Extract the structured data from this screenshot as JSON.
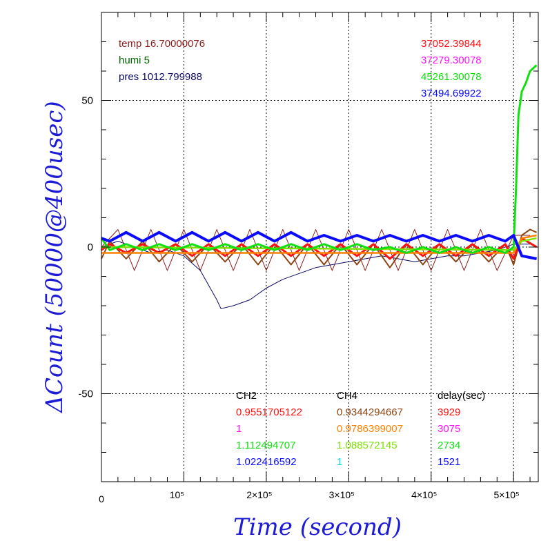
{
  "chart_data": {
    "type": "line",
    "xlabel": "Time (second)",
    "ylabel": "ΔCount (50000@400usec)",
    "xlim": [
      0,
      530000
    ],
    "ylim": [
      -80,
      80
    ],
    "x_ticks": [
      {
        "value": 0,
        "label": "0"
      },
      {
        "value": 100000,
        "label": "10⁵"
      },
      {
        "value": 200000,
        "label": "2×10⁵"
      },
      {
        "value": 300000,
        "label": "3×10⁵"
      },
      {
        "value": 400000,
        "label": "4×10⁵"
      },
      {
        "value": 500000,
        "label": "5×10⁵"
      }
    ],
    "y_ticks": [
      {
        "value": 50,
        "label": "50"
      },
      {
        "value": 0,
        "label": "0"
      },
      {
        "value": -50,
        "label": "-50"
      }
    ],
    "grid": true,
    "colors": {
      "brown": "#8b1a1a",
      "dark_orange": "#8b4513",
      "orange": "#ff8000",
      "red": "#ff1010",
      "green": "#10e010",
      "dark_green": "#006400",
      "blue": "#0a0aff",
      "navy": "#0a0a6a",
      "magenta": "#ff10ff",
      "cyan": "#00e0e0",
      "yellow_green": "#80e000"
    },
    "series": [
      {
        "color": "brown",
        "x": [
          0,
          20000,
          40000,
          60000,
          80000,
          100000,
          120000,
          140000,
          160000,
          180000,
          200000,
          220000,
          240000,
          260000,
          280000,
          300000,
          320000,
          340000,
          360000,
          380000,
          400000,
          420000,
          440000,
          460000,
          480000,
          500000,
          520000
        ],
        "y": [
          0,
          6,
          -8,
          6,
          -8,
          6,
          -8,
          6,
          -8,
          6,
          -8,
          6,
          -8,
          6,
          -8,
          6,
          -8,
          6,
          -8,
          6,
          -8,
          6,
          -8,
          6,
          -8,
          4,
          4
        ]
      },
      {
        "color": "navy",
        "x": [
          0,
          20000,
          40000,
          60000,
          80000,
          100000,
          120000,
          140000,
          145000,
          160000,
          180000,
          200000,
          220000,
          240000,
          260000,
          280000,
          300000,
          320000,
          340000,
          360000,
          380000,
          400000,
          420000,
          440000,
          460000,
          480000,
          500000,
          520000
        ],
        "y": [
          0,
          2,
          0,
          -2,
          -1,
          -3,
          -8,
          -18,
          -21,
          -20,
          -18,
          -14,
          -11,
          -9,
          -7,
          -6,
          -5,
          -4,
          -3,
          -4,
          -5,
          -4,
          -3,
          -3,
          -2,
          -1,
          1,
          1
        ]
      },
      {
        "color": "dark_orange",
        "x": [
          0,
          10000,
          30000,
          50000,
          70000,
          90000,
          110000,
          130000,
          150000,
          170000,
          190000,
          210000,
          230000,
          250000,
          270000,
          290000,
          310000,
          330000,
          350000,
          370000,
          390000,
          410000,
          430000,
          450000,
          470000,
          490000,
          500000,
          510000,
          520000,
          528000
        ],
        "y": [
          -4,
          2,
          -4,
          2,
          -5,
          1,
          -5,
          1,
          -5,
          1,
          -6,
          1,
          -6,
          1,
          -6,
          1,
          -6,
          1,
          -7,
          1,
          -6,
          1,
          -5,
          1,
          -5,
          1,
          -6,
          4,
          6,
          5
        ]
      },
      {
        "color": "red",
        "x": [
          0,
          10000,
          30000,
          50000,
          70000,
          90000,
          110000,
          130000,
          150000,
          170000,
          190000,
          210000,
          230000,
          250000,
          270000,
          290000,
          310000,
          330000,
          350000,
          370000,
          390000,
          410000,
          430000,
          450000,
          470000,
          490000,
          500000,
          510000,
          528000
        ],
        "y": [
          -1,
          1,
          -2,
          1,
          -2,
          1,
          -3,
          1,
          -3,
          1,
          -3,
          1,
          -3,
          1,
          -3,
          1,
          -3,
          1,
          -4,
          1,
          -3,
          1,
          -3,
          1,
          -3,
          1,
          -4,
          3,
          0
        ]
      },
      {
        "color": "orange",
        "x": [
          0,
          500000,
          510000,
          528000
        ],
        "y": [
          -2,
          -2,
          3,
          4
        ]
      },
      {
        "color": "yellow_green",
        "x": [
          0,
          500000,
          510000,
          528000
        ],
        "y": [
          0,
          -1,
          2,
          3
        ]
      },
      {
        "color": "green",
        "x": [
          0,
          10000,
          30000,
          50000,
          70000,
          90000,
          110000,
          130000,
          150000,
          170000,
          190000,
          210000,
          230000,
          250000,
          270000,
          290000,
          310000,
          330000,
          350000,
          370000,
          390000,
          410000,
          430000,
          450000,
          470000,
          490000,
          500000,
          503000,
          506000,
          510000,
          515000,
          520000,
          528000
        ],
        "y": [
          3,
          -1,
          1,
          -1,
          1,
          -1,
          1,
          -1,
          1,
          -1,
          1,
          -1,
          1,
          -1,
          1,
          -1,
          1,
          -1,
          0,
          -2,
          0,
          -2,
          0,
          -2,
          0,
          -2,
          0,
          20,
          45,
          53,
          56,
          60,
          62
        ]
      },
      {
        "color": "blue",
        "x": [
          0,
          10000,
          30000,
          50000,
          70000,
          90000,
          110000,
          130000,
          150000,
          170000,
          190000,
          210000,
          230000,
          250000,
          270000,
          290000,
          310000,
          330000,
          350000,
          370000,
          390000,
          410000,
          430000,
          450000,
          470000,
          490000,
          500000,
          510000,
          528000
        ],
        "y": [
          3,
          2,
          5,
          2,
          5,
          2,
          5,
          2,
          5,
          2,
          5,
          2,
          5,
          2,
          4,
          2,
          4,
          2,
          4,
          2,
          4,
          2,
          4,
          2,
          4,
          2,
          4,
          -3,
          -4
        ]
      }
    ],
    "annotations_top_left": [
      {
        "text": "temp 16.70000076",
        "color": "brown"
      },
      {
        "text": "humi 5",
        "color": "dark_green"
      },
      {
        "text": "pres 1012.799988",
        "color": "navy"
      }
    ],
    "annotations_top_right": [
      {
        "text": "37052.39844",
        "color": "red"
      },
      {
        "text": "37279.30078",
        "color": "magenta"
      },
      {
        "text": "45261.30078",
        "color": "green"
      },
      {
        "text": "37494.69922",
        "color": "blue"
      }
    ],
    "table_bottom": {
      "headers": [
        "CH2",
        "CH4",
        "delay(sec)"
      ],
      "rows": [
        [
          {
            "text": "0.9551705122",
            "color": "red"
          },
          {
            "text": "0.9344294667",
            "color": "dark_orange"
          },
          {
            "text": "3929",
            "color": "red"
          }
        ],
        [
          {
            "text": "1",
            "color": "magenta"
          },
          {
            "text": "0.9786399007",
            "color": "orange"
          },
          {
            "text": "3075",
            "color": "magenta"
          }
        ],
        [
          {
            "text": "1.112494707",
            "color": "green"
          },
          {
            "text": "1.088572145",
            "color": "yellow_green"
          },
          {
            "text": "2734",
            "color": "green"
          }
        ],
        [
          {
            "text": "1.022416592",
            "color": "blue"
          },
          {
            "text": "1",
            "color": "cyan"
          },
          {
            "text": "1521",
            "color": "blue"
          }
        ]
      ]
    }
  }
}
